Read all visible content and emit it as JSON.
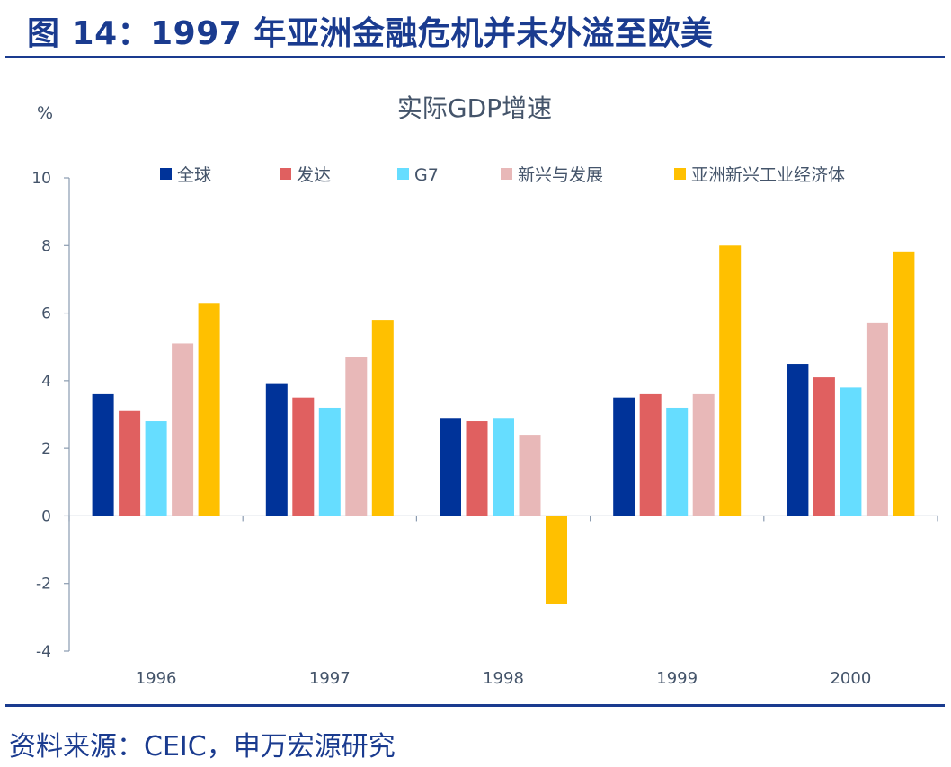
{
  "header": {
    "title": "图 14：1997 年亚洲金融危机并未外溢至欧美"
  },
  "footer": {
    "source": "资料来源：CEIC，申万宏源研究"
  },
  "chart_data": {
    "type": "bar",
    "title": "实际GDP增速",
    "ylabel": "%",
    "xlabel": "",
    "categories": [
      "1996",
      "1997",
      "1998",
      "1999",
      "2000"
    ],
    "ylim": [
      -4,
      10
    ],
    "yticks": [
      10,
      8,
      6,
      4,
      2,
      0,
      -2,
      -4
    ],
    "grid": false,
    "legend": "top",
    "series": [
      {
        "name": "全球",
        "color": "#003399",
        "values": [
          3.6,
          3.9,
          2.9,
          3.5,
          4.5
        ]
      },
      {
        "name": "发达",
        "color": "#e06060",
        "values": [
          3.1,
          3.5,
          2.8,
          3.6,
          4.1
        ]
      },
      {
        "name": "G7",
        "color": "#66ddff",
        "values": [
          2.8,
          3.2,
          2.9,
          3.2,
          3.8
        ]
      },
      {
        "name": "新兴与发展",
        "color": "#e8b8b8",
        "values": [
          5.1,
          4.7,
          2.4,
          3.6,
          5.7
        ]
      },
      {
        "name": "亚洲新兴工业经济体",
        "color": "#ffc000",
        "values": [
          6.3,
          5.8,
          -2.6,
          8.0,
          7.8
        ]
      }
    ]
  }
}
